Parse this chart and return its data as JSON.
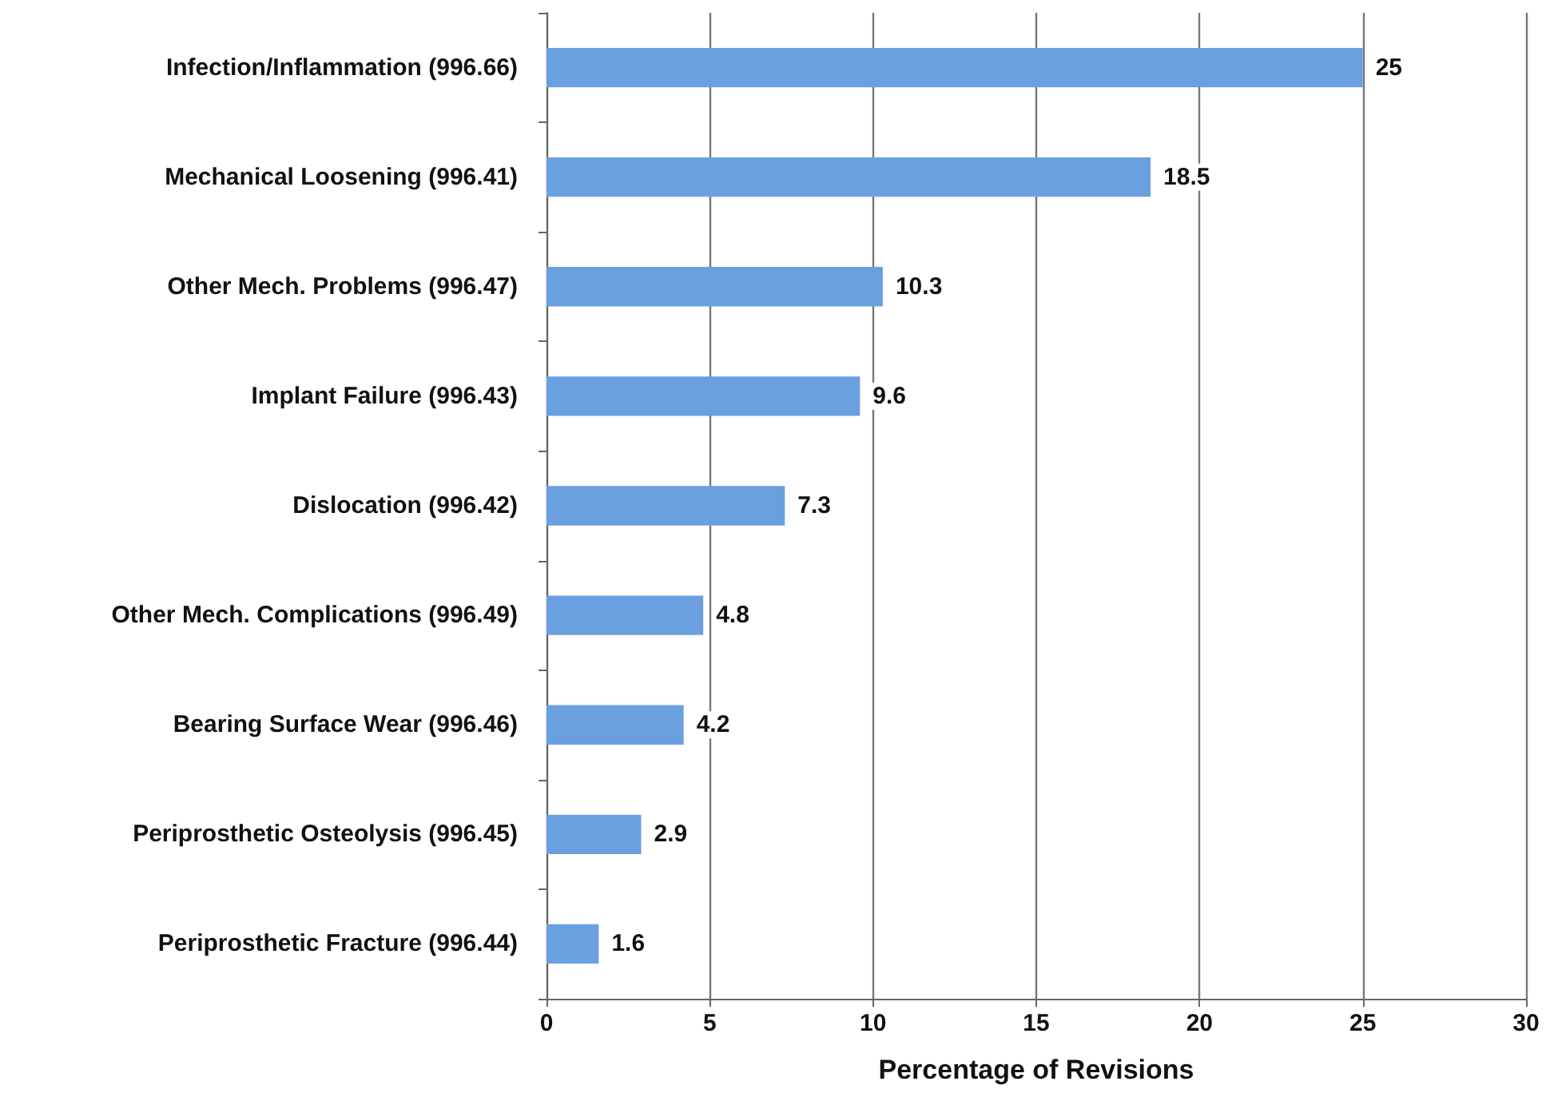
{
  "chart_data": {
    "type": "bar",
    "orientation": "horizontal",
    "xlabel": "Percentage of Revisions",
    "categories": [
      "Infection/Inflammation (996.66)",
      "Mechanical Loosening (996.41)",
      "Other Mech. Problems (996.47)",
      "Implant Failure (996.43)",
      "Dislocation (996.42)",
      "Other Mech. Complications (996.49)",
      "Bearing Surface Wear (996.46)",
      "Periprosthetic Osteolysis (996.45)",
      "Periprosthetic Fracture (996.44)"
    ],
    "values": [
      25,
      18.5,
      10.3,
      9.6,
      7.3,
      4.8,
      4.2,
      2.9,
      1.6
    ],
    "color": "#6a9fe0",
    "data_labels": true,
    "xlim": [
      0,
      30
    ],
    "xticks": [
      0,
      5,
      10,
      15,
      20,
      25,
      30
    ],
    "grid": "x"
  }
}
